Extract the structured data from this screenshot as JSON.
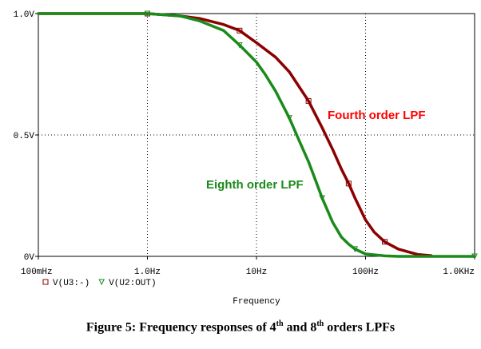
{
  "chart_data": {
    "type": "line",
    "x_scale": "log",
    "xlim": [
      0.1,
      1000
    ],
    "ylim": [
      0,
      1.0
    ],
    "x_ticks": [
      "100mHz",
      "1.0Hz",
      "10Hz",
      "100Hz",
      "1.0KHz"
    ],
    "y_ticks": [
      "0V",
      "0.5V",
      "1.0V"
    ],
    "xlabel": "Frequency",
    "ylabel": "",
    "grid": true,
    "legend": {
      "position": "bottom-left",
      "entries": [
        "V(U3:-)",
        "V(U2:OUT)"
      ]
    },
    "series": [
      {
        "name": "V(U3:-)",
        "annotation": "Fourth order LPF",
        "color": "#8b0000",
        "marker": "square",
        "x": [
          0.1,
          0.5,
          1,
          2,
          3,
          5,
          7,
          10,
          15,
          20,
          30,
          40,
          50,
          60,
          70,
          80,
          100,
          120,
          150,
          200,
          300,
          400
        ],
        "y": [
          1.0,
          1.0,
          1.0,
          0.99,
          0.98,
          0.955,
          0.93,
          0.88,
          0.82,
          0.76,
          0.64,
          0.53,
          0.44,
          0.36,
          0.3,
          0.24,
          0.15,
          0.1,
          0.06,
          0.03,
          0.008,
          0.003
        ]
      },
      {
        "name": "V(U2:OUT)",
        "annotation": "Eighth order LPF",
        "color": "#1a8a1a",
        "marker": "triangle-down",
        "x": [
          0.1,
          0.5,
          1,
          2,
          3,
          5,
          7,
          10,
          12,
          15,
          20,
          25,
          30,
          35,
          40,
          50,
          60,
          70,
          80,
          100,
          150,
          200,
          1000
        ],
        "y": [
          1.0,
          1.0,
          1.0,
          0.99,
          0.97,
          0.93,
          0.87,
          0.8,
          0.75,
          0.68,
          0.57,
          0.47,
          0.39,
          0.31,
          0.24,
          0.14,
          0.08,
          0.05,
          0.03,
          0.01,
          0.002,
          0.0,
          0.0
        ]
      }
    ]
  },
  "caption": {
    "prefix": "Figure 5: Frequency responses of 4",
    "sup1": "th",
    "middle": " and 8",
    "sup2": "th",
    "suffix": " orders LPFs"
  }
}
